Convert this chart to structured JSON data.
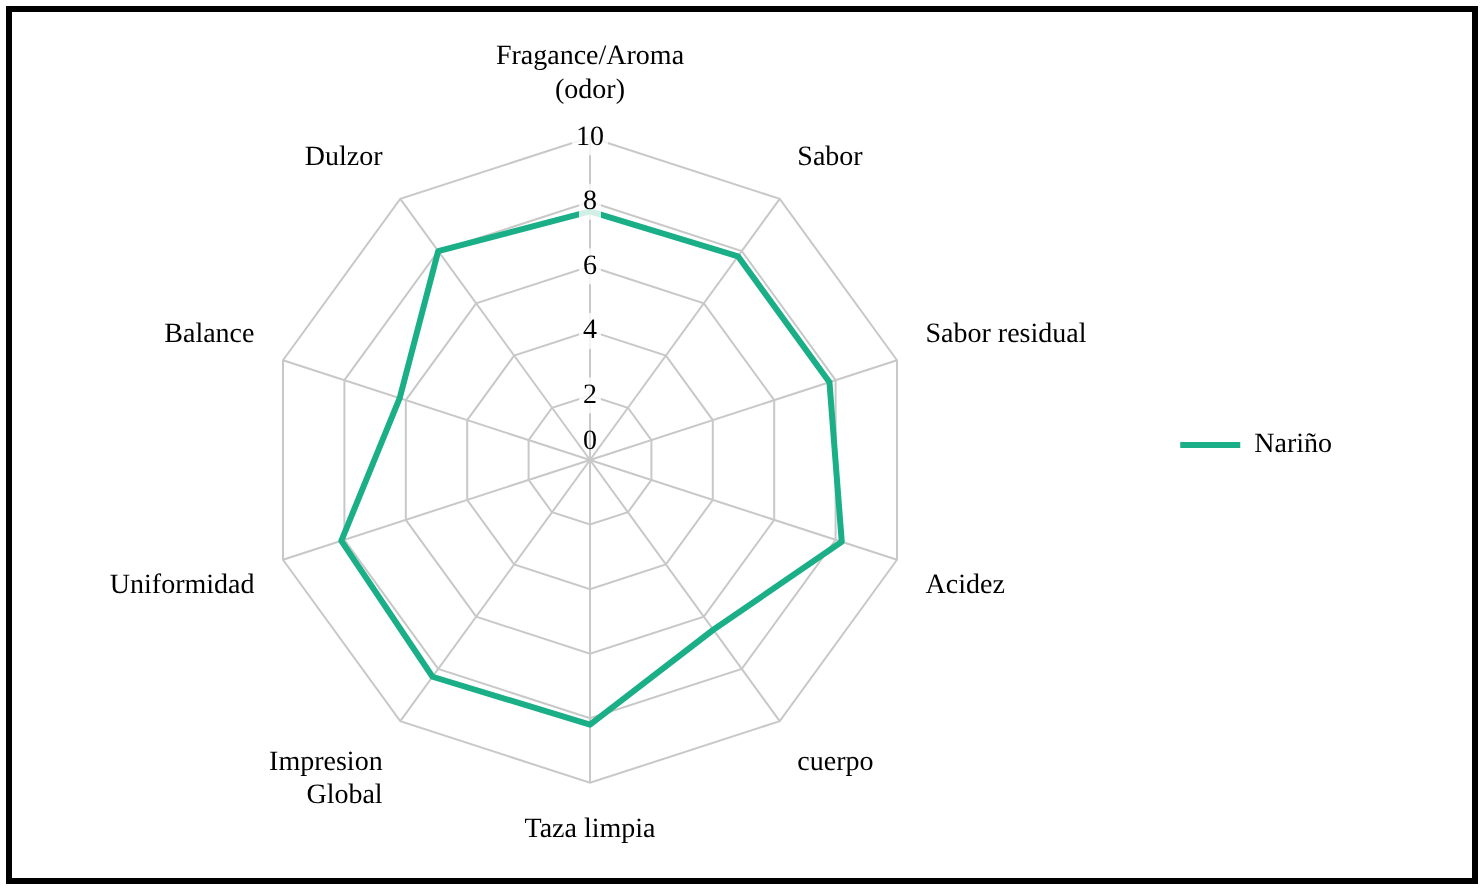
{
  "chart_data": {
    "type": "radar",
    "categories": [
      "Fragance/Aroma (odor)",
      "Sabor",
      "Sabor residual",
      "Acidez",
      "cuerpo",
      "Taza limpia",
      "Impresion Global",
      "Uniformidad",
      "Balance",
      "Dulzor"
    ],
    "series": [
      {
        "name": "Nariño",
        "color": "#1aaf87",
        "values": [
          7.7,
          7.8,
          7.8,
          8.2,
          6.5,
          8.2,
          8.3,
          8.1,
          6.2,
          8.0
        ]
      }
    ],
    "ylim": [
      0,
      10
    ],
    "yticks": [
      0,
      2,
      4,
      6,
      8,
      10
    ],
    "grid": true,
    "legend": "right",
    "marker": "none",
    "line_style": "solid"
  }
}
